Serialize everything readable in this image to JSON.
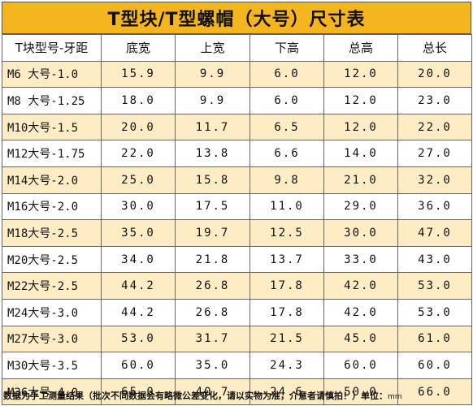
{
  "title": "T型块/T型螺帽（大号）尺寸表",
  "headers": [
    "T块型号-牙距",
    "底宽",
    "上宽",
    "下高",
    "总高",
    "总长"
  ],
  "rows": [
    [
      "M6 大号-1.0",
      "15.9",
      "9.9",
      "6.0",
      "12.0",
      "20.0"
    ],
    [
      "M8 大号-1.25",
      "18.0",
      "9.9",
      "6.0",
      "12.0",
      "23.0"
    ],
    [
      "M10大号-1.5",
      "20.0",
      "11.7",
      "6.5",
      "12.0",
      "22.0"
    ],
    [
      "M12大号-1.75",
      "22.0",
      "13.8",
      "6.6",
      "14.0",
      "27.0"
    ],
    [
      "M14大号-2.0",
      "25.0",
      "15.8",
      "9.8",
      "21.0",
      "32.0"
    ],
    [
      "M16大号-2.0",
      "30.0",
      "17.5",
      "11.0",
      "29.0",
      "36.0"
    ],
    [
      "M18大号-2.5",
      "35.0",
      "19.7",
      "12.5",
      "30.0",
      "47.0"
    ],
    [
      "M20大号-2.5",
      "34.0",
      "21.8",
      "13.7",
      "33.0",
      "43.0"
    ],
    [
      "M22大号-2.5",
      "44.2",
      "26.8",
      "17.8",
      "42.0",
      "53.0"
    ],
    [
      "M24大号-3.0",
      "44.2",
      "26.8",
      "17.8",
      "42.0",
      "53.0"
    ],
    [
      "M27大号-3.0",
      "53.0",
      "31.7",
      "21.5",
      "45.0",
      "61.0"
    ],
    [
      "M30大号-3.5",
      "60.0",
      "35.0",
      "24.3",
      "60.0",
      "60.0"
    ],
    [
      "M36大号-4.0",
      "65.0",
      "40.7",
      "24.6",
      "50.0",
      "66.0"
    ]
  ],
  "footer": {
    "note": "数据为手工测量结果（批次不同数据会有略微公差变化，请以实物为准，介意者请慎拍！）单位：",
    "unit": "mm"
  },
  "colors": {
    "title_bg": "#f5b51e",
    "stripe": "#fdecc4"
  }
}
